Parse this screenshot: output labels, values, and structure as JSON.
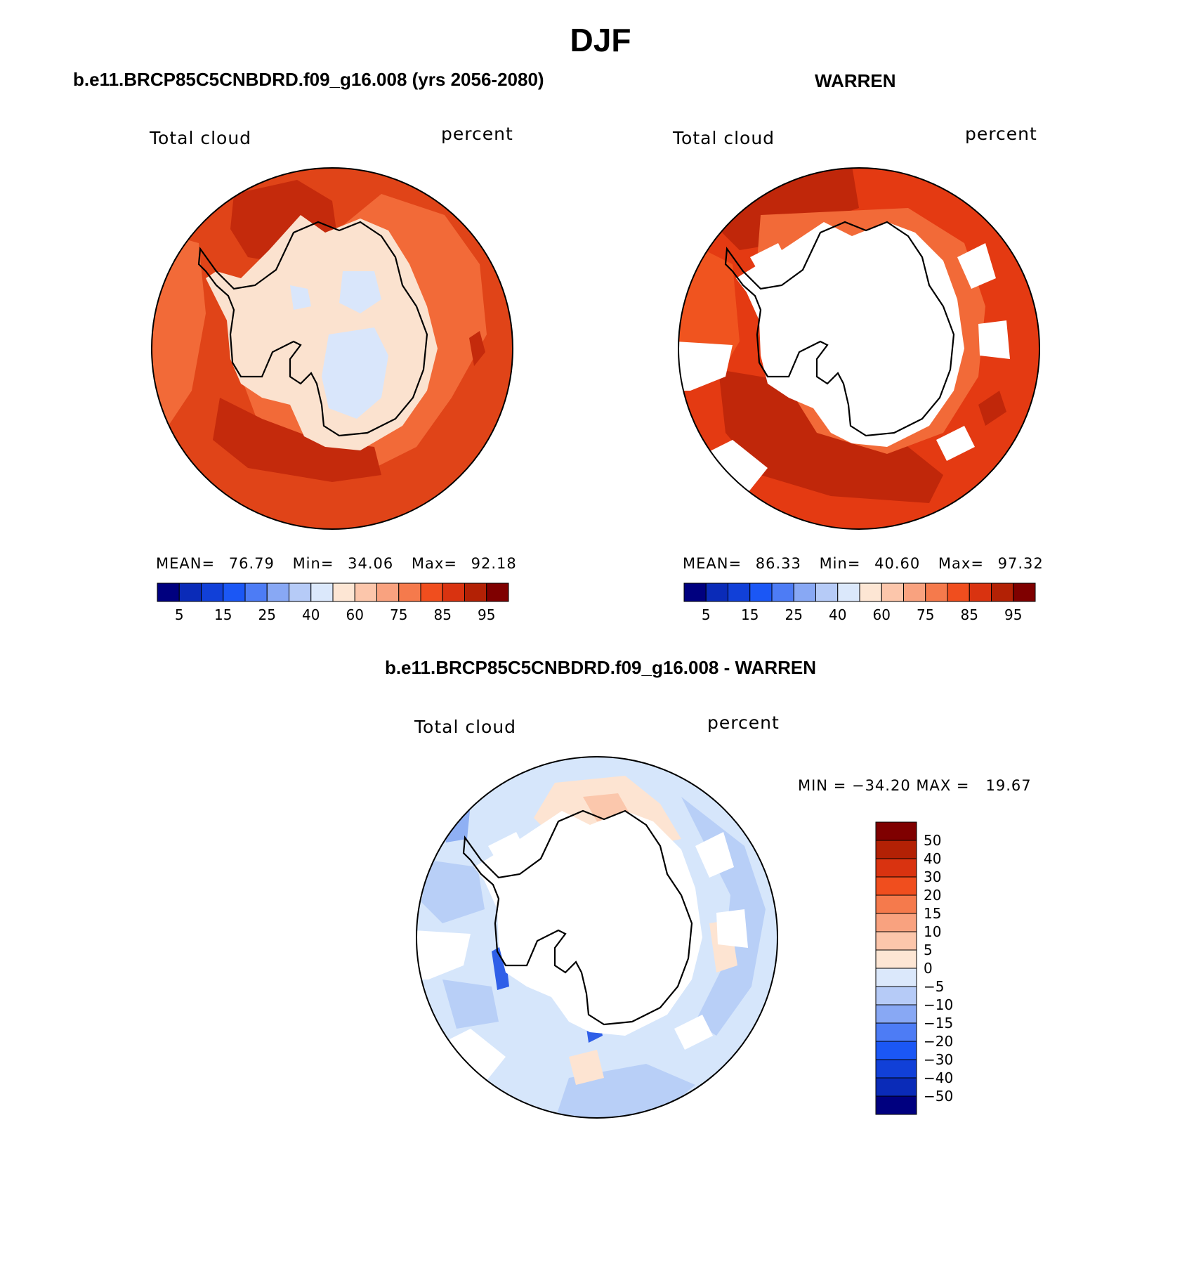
{
  "title": "DJF",
  "panels": [
    {
      "heading": "b.e11.BRCP85C5CNBDRD.f09_g16.008 (yrs 2056-2080)",
      "left_label": "Total cloud",
      "right_label": "percent",
      "stats": {
        "mean_label": "MEAN=",
        "mean": "76.79",
        "min_label": "Min=",
        "min": "34.06",
        "max_label": "Max=",
        "max": "92.18"
      }
    },
    {
      "heading": "WARREN",
      "left_label": "Total cloud",
      "right_label": "percent",
      "stats": {
        "mean_label": "MEAN=",
        "mean": "86.33",
        "min_label": "Min=",
        "min": "40.60",
        "max_label": "Max=",
        "max": "97.32"
      }
    },
    {
      "heading": "b.e11.BRCP85C5CNBDRD.f09_g16.008 - WARREN",
      "left_label": "Total cloud",
      "right_label": "percent",
      "minmax": "MIN = −34.20 MAX =   19.67"
    }
  ],
  "colorbar_abs": {
    "colors": [
      "#00007f",
      "#0a2bb8",
      "#1140d8",
      "#1b57f5",
      "#4d7cf5",
      "#88a8f4",
      "#b6cbf7",
      "#dbe8fb",
      "#fde6d4",
      "#fcc6ab",
      "#f9a27f",
      "#f57a4c",
      "#f04e1e",
      "#d93310",
      "#b32105",
      "#7f0000"
    ],
    "tick_labels": [
      "5",
      "15",
      "25",
      "40",
      "60",
      "75",
      "85",
      "95"
    ]
  },
  "colorbar_diff": {
    "colors_top_to_bottom": [
      "#7f0000",
      "#b32105",
      "#d93310",
      "#f04e1e",
      "#f57a4c",
      "#f9a27f",
      "#fcc6ab",
      "#fde6d4",
      "#dbe8fb",
      "#b6cbf7",
      "#88a8f4",
      "#4d7cf5",
      "#1b57f5",
      "#1140d8",
      "#0a2bb8",
      "#00007f"
    ],
    "tick_labels": [
      "50",
      "40",
      "30",
      "20",
      "15",
      "10",
      "5",
      "0",
      "−5",
      "−10",
      "−15",
      "−20",
      "−30",
      "−40",
      "−50"
    ]
  },
  "map_colors": {
    "land_white": "#ffffff",
    "coast": "#000000",
    "a_outer": "#e04418",
    "a_dark": "#c42a0c",
    "a_light": "#f26a38",
    "a_ice": "#fbe2cf",
    "a_ice_blue": "#d9e6fb",
    "b_outer": "#e43a12",
    "b_dark": "#c0270a",
    "b_mid": "#f0541f",
    "d_base": "#d6e6fb",
    "d_mid": "#b8cff7",
    "d_pos": "#fde4d2",
    "d_pos2": "#fbc7ac",
    "d_neg": "#2f5fe8"
  }
}
